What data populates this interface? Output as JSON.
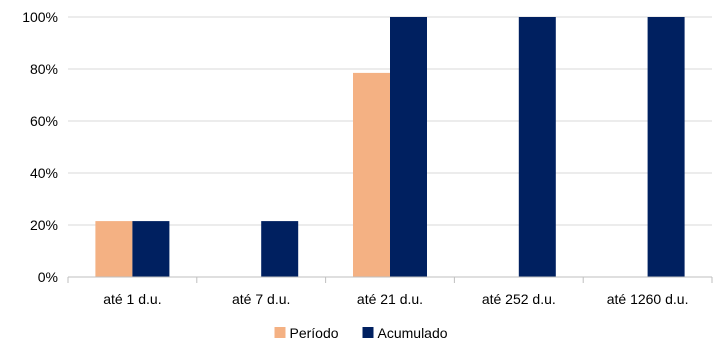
{
  "chart_data": {
    "type": "bar",
    "categories": [
      "até 1 d.u.",
      "até 7 d.u.",
      "até 21 d.u.",
      "até 252 d.u.",
      "até 1260 d.u."
    ],
    "series": [
      {
        "name": "Período",
        "values": [
          21.5,
          0,
          78.5,
          0,
          0
        ],
        "color": "#F4B183"
      },
      {
        "name": "Acumulado",
        "values": [
          21.5,
          21.5,
          100,
          100,
          100
        ],
        "color": "#002060"
      }
    ],
    "ylim": [
      0,
      100
    ],
    "yticks": [
      "0%",
      "20%",
      "40%",
      "60%",
      "80%",
      "100%"
    ],
    "ytick_values": [
      0,
      20,
      40,
      60,
      80,
      100
    ],
    "grid": true,
    "legend_position": "bottom"
  }
}
